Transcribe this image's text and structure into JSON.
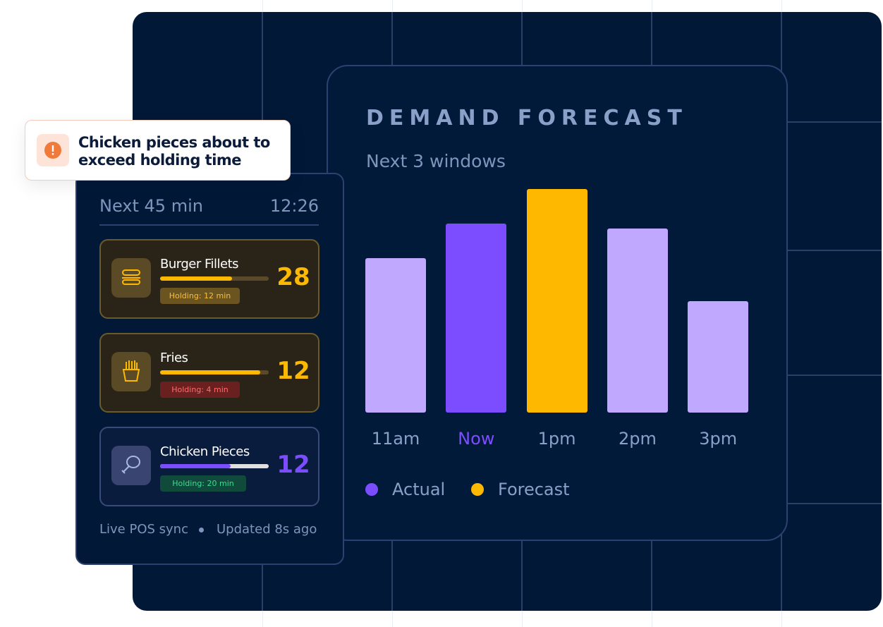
{
  "alert": {
    "text": "Chicken pieces about to exceed holding time"
  },
  "panel": {
    "title": "Next 45 min",
    "time": "12:26",
    "items": [
      {
        "name": "Burger Fillets",
        "value": 28,
        "holding": "Holding: 12 min",
        "progress": 66,
        "color": "#ffb800"
      },
      {
        "name": "Fries",
        "value": 12,
        "holding": "Holding: 4 min",
        "progress": 92,
        "color": "#ffb800"
      },
      {
        "name": "Chicken Pieces",
        "value": 12,
        "holding": "Holding: 20 min",
        "progress": 65,
        "color": "#7c4dff"
      }
    ],
    "footer": [
      "Live POS sync",
      "Updated 8s ago"
    ]
  },
  "chart_data": {
    "type": "bar",
    "title": "DEMAND FORECAST",
    "subtitle": "Next 3 windows",
    "categories": [
      "11am",
      "Now",
      "1pm",
      "2pm",
      "3pm"
    ],
    "values": [
      219,
      268,
      317,
      261,
      158
    ],
    "colors": [
      "#c0a8ff",
      "#7c4dff",
      "#ffb800",
      "#c0a8ff",
      "#c0a8ff"
    ],
    "ylim": [
      0,
      320
    ],
    "legend": [
      {
        "name": "Actual",
        "color": "#7c4dff"
      },
      {
        "name": "Forecast",
        "color": "#ffb800"
      }
    ]
  }
}
